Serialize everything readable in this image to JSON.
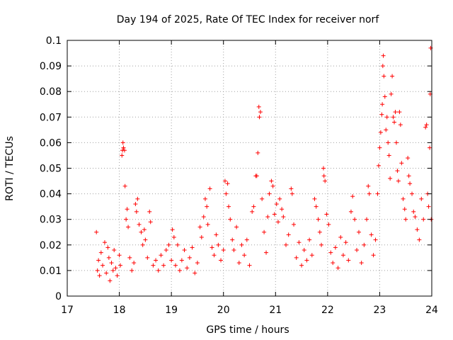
{
  "chart_data": {
    "type": "scatter",
    "title": "Day 194 of 2025, Rate Of TEC Index for receiver norf",
    "xlabel": "GPS time / hours",
    "ylabel": "ROTI / TECUs",
    "xlim": [
      17,
      24
    ],
    "ylim": [
      0,
      0.1
    ],
    "x_ticks": [
      17,
      18,
      19,
      20,
      21,
      22,
      23,
      24
    ],
    "y_ticks": [
      0,
      0.01,
      0.02,
      0.03,
      0.04,
      0.05,
      0.06,
      0.07,
      0.08,
      0.09,
      0.1
    ],
    "x_tick_labels": [
      "17",
      "18",
      "19",
      "20",
      "21",
      "22",
      "23",
      "24"
    ],
    "y_tick_labels": [
      "0",
      "0.01",
      "0.02",
      "0.03",
      "0.04",
      "0.05",
      "0.06",
      "0.07",
      "0.08",
      "0.09",
      "0.1"
    ],
    "grid": true,
    "marker": "+",
    "color": "#ff0000",
    "series": [
      {
        "name": "ROTI",
        "points": [
          [
            17.56,
            0.025
          ],
          [
            17.58,
            0.01
          ],
          [
            17.6,
            0.014
          ],
          [
            17.62,
            0.008
          ],
          [
            17.65,
            0.017
          ],
          [
            17.68,
            0.012
          ],
          [
            17.72,
            0.021
          ],
          [
            17.75,
            0.009
          ],
          [
            17.78,
            0.019
          ],
          [
            17.8,
            0.015
          ],
          [
            17.82,
            0.006
          ],
          [
            17.85,
            0.013
          ],
          [
            17.88,
            0.01
          ],
          [
            17.9,
            0.018
          ],
          [
            17.93,
            0.011
          ],
          [
            17.96,
            0.008
          ],
          [
            18.0,
            0.016
          ],
          [
            18.02,
            0.012
          ],
          [
            18.05,
            0.055
          ],
          [
            18.06,
            0.057
          ],
          [
            18.07,
            0.06
          ],
          [
            18.08,
            0.058
          ],
          [
            18.1,
            0.057
          ],
          [
            18.11,
            0.043
          ],
          [
            18.13,
            0.03
          ],
          [
            18.15,
            0.034
          ],
          [
            18.17,
            0.027
          ],
          [
            18.2,
            0.015
          ],
          [
            18.24,
            0.01
          ],
          [
            18.28,
            0.013
          ],
          [
            18.31,
            0.036
          ],
          [
            18.33,
            0.033
          ],
          [
            18.35,
            0.038
          ],
          [
            18.38,
            0.028
          ],
          [
            18.42,
            0.025
          ],
          [
            18.45,
            0.02
          ],
          [
            18.48,
            0.026
          ],
          [
            18.5,
            0.022
          ],
          [
            18.54,
            0.015
          ],
          [
            18.58,
            0.033
          ],
          [
            18.6,
            0.029
          ],
          [
            18.65,
            0.012
          ],
          [
            18.7,
            0.014
          ],
          [
            18.75,
            0.01
          ],
          [
            18.8,
            0.016
          ],
          [
            18.85,
            0.012
          ],
          [
            18.9,
            0.018
          ],
          [
            18.95,
            0.02
          ],
          [
            19.0,
            0.014
          ],
          [
            19.02,
            0.026
          ],
          [
            19.05,
            0.023
          ],
          [
            19.08,
            0.012
          ],
          [
            19.12,
            0.02
          ],
          [
            19.16,
            0.01
          ],
          [
            19.2,
            0.014
          ],
          [
            19.25,
            0.018
          ],
          [
            19.3,
            0.011
          ],
          [
            19.35,
            0.015
          ],
          [
            19.4,
            0.019
          ],
          [
            19.45,
            0.009
          ],
          [
            19.5,
            0.013
          ],
          [
            19.55,
            0.027
          ],
          [
            19.58,
            0.023
          ],
          [
            19.62,
            0.031
          ],
          [
            19.65,
            0.038
          ],
          [
            19.68,
            0.035
          ],
          [
            19.7,
            0.028
          ],
          [
            19.74,
            0.042
          ],
          [
            19.78,
            0.019
          ],
          [
            19.82,
            0.016
          ],
          [
            19.86,
            0.024
          ],
          [
            19.9,
            0.02
          ],
          [
            19.95,
            0.014
          ],
          [
            20.0,
            0.018
          ],
          [
            20.03,
            0.045
          ],
          [
            20.05,
            0.04
          ],
          [
            20.08,
            0.044
          ],
          [
            20.1,
            0.035
          ],
          [
            20.13,
            0.03
          ],
          [
            20.17,
            0.022
          ],
          [
            20.2,
            0.018
          ],
          [
            20.25,
            0.027
          ],
          [
            20.3,
            0.013
          ],
          [
            20.35,
            0.02
          ],
          [
            20.4,
            0.016
          ],
          [
            20.45,
            0.022
          ],
          [
            20.5,
            0.012
          ],
          [
            20.55,
            0.033
          ],
          [
            20.58,
            0.035
          ],
          [
            20.62,
            0.047
          ],
          [
            20.64,
            0.047
          ],
          [
            20.66,
            0.056
          ],
          [
            20.68,
            0.074
          ],
          [
            20.69,
            0.07
          ],
          [
            20.71,
            0.072
          ],
          [
            20.74,
            0.038
          ],
          [
            20.78,
            0.025
          ],
          [
            20.82,
            0.017
          ],
          [
            20.85,
            0.031
          ],
          [
            20.88,
            0.04
          ],
          [
            20.92,
            0.045
          ],
          [
            20.95,
            0.043
          ],
          [
            20.98,
            0.032
          ],
          [
            21.02,
            0.036
          ],
          [
            21.05,
            0.029
          ],
          [
            21.08,
            0.038
          ],
          [
            21.12,
            0.034
          ],
          [
            21.15,
            0.031
          ],
          [
            21.2,
            0.02
          ],
          [
            21.25,
            0.024
          ],
          [
            21.3,
            0.042
          ],
          [
            21.32,
            0.04
          ],
          [
            21.35,
            0.028
          ],
          [
            21.4,
            0.015
          ],
          [
            21.45,
            0.021
          ],
          [
            21.5,
            0.012
          ],
          [
            21.55,
            0.018
          ],
          [
            21.6,
            0.014
          ],
          [
            21.65,
            0.022
          ],
          [
            21.7,
            0.016
          ],
          [
            21.75,
            0.038
          ],
          [
            21.78,
            0.035
          ],
          [
            21.82,
            0.03
          ],
          [
            21.85,
            0.025
          ],
          [
            21.88,
            0.02
          ],
          [
            21.92,
            0.05
          ],
          [
            21.93,
            0.047
          ],
          [
            21.95,
            0.045
          ],
          [
            21.98,
            0.032
          ],
          [
            22.02,
            0.028
          ],
          [
            22.06,
            0.017
          ],
          [
            22.1,
            0.013
          ],
          [
            22.15,
            0.019
          ],
          [
            22.2,
            0.011
          ],
          [
            22.25,
            0.023
          ],
          [
            22.3,
            0.016
          ],
          [
            22.35,
            0.021
          ],
          [
            22.4,
            0.014
          ],
          [
            22.45,
            0.033
          ],
          [
            22.48,
            0.039
          ],
          [
            22.52,
            0.03
          ],
          [
            22.56,
            0.018
          ],
          [
            22.6,
            0.025
          ],
          [
            22.65,
            0.013
          ],
          [
            22.7,
            0.02
          ],
          [
            22.75,
            0.03
          ],
          [
            22.78,
            0.043
          ],
          [
            22.8,
            0.04
          ],
          [
            22.84,
            0.024
          ],
          [
            22.88,
            0.016
          ],
          [
            22.92,
            0.022
          ],
          [
            22.96,
            0.04
          ],
          [
            22.98,
            0.051
          ],
          [
            23.0,
            0.058
          ],
          [
            23.02,
            0.064
          ],
          [
            23.04,
            0.071
          ],
          [
            23.05,
            0.075
          ],
          [
            23.06,
            0.09
          ],
          [
            23.07,
            0.094
          ],
          [
            23.08,
            0.086
          ],
          [
            23.1,
            0.078
          ],
          [
            23.12,
            0.065
          ],
          [
            23.14,
            0.07
          ],
          [
            23.16,
            0.06
          ],
          [
            23.18,
            0.055
          ],
          [
            23.2,
            0.046
          ],
          [
            23.22,
            0.079
          ],
          [
            23.24,
            0.086
          ],
          [
            23.26,
            0.07
          ],
          [
            23.28,
            0.068
          ],
          [
            23.3,
            0.072
          ],
          [
            23.32,
            0.06
          ],
          [
            23.34,
            0.049
          ],
          [
            23.36,
            0.045
          ],
          [
            23.38,
            0.072
          ],
          [
            23.4,
            0.067
          ],
          [
            23.42,
            0.052
          ],
          [
            23.45,
            0.038
          ],
          [
            23.48,
            0.034
          ],
          [
            23.5,
            0.03
          ],
          [
            23.54,
            0.054
          ],
          [
            23.56,
            0.047
          ],
          [
            23.58,
            0.044
          ],
          [
            23.62,
            0.04
          ],
          [
            23.65,
            0.033
          ],
          [
            23.68,
            0.031
          ],
          [
            23.72,
            0.026
          ],
          [
            23.76,
            0.022
          ],
          [
            23.8,
            0.038
          ],
          [
            23.84,
            0.03
          ],
          [
            23.88,
            0.066
          ],
          [
            23.9,
            0.067
          ],
          [
            23.92,
            0.04
          ],
          [
            23.94,
            0.035
          ],
          [
            23.96,
            0.058
          ],
          [
            23.97,
            0.079
          ],
          [
            23.98,
            0.097
          ],
          [
            23.99,
            0.03
          ]
        ]
      }
    ]
  }
}
